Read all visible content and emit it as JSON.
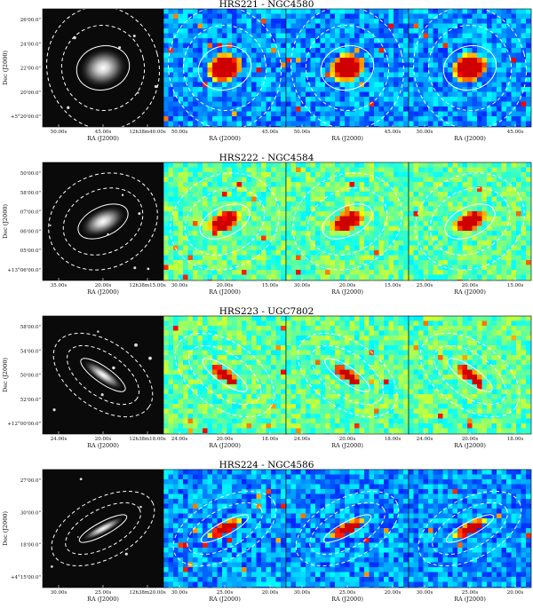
{
  "rows": [
    {
      "title": "HRS221 - NGC4580",
      "ylabel": "Dec (J2000)",
      "xlabel": "RA (J2000)",
      "yticks": [
        "26'00.0\"",
        "24'00.0\"",
        "22'00.0\"",
        "20'00.0\"",
        "+5°20'00.0\""
      ],
      "xticks": [
        [
          "50.00s",
          "45.00s",
          "12h38m40.00s"
        ],
        [
          "50.00s",
          "45.00s"
        ],
        [
          "50.00s",
          "45.00s"
        ],
        [
          "50.00s",
          "45.00s"
        ]
      ],
      "galaxy": {
        "ratio": 0.82,
        "angle": -15
      },
      "map_palette": "blue"
    },
    {
      "title": "HRS222 - NGC4584",
      "ylabel": "Dec (J2000)",
      "xlabel": "RA (J2000)",
      "yticks": [
        "50'00.0\"",
        "58'00.0\"",
        "07'00.0\"",
        "06'00.0\"",
        "05'00.0\"",
        "+13°06'00.0\""
      ],
      "xticks": [
        [
          "35.00s",
          "20.00s",
          "12h38m15.00s"
        ],
        [
          "30.00s",
          "20.00s",
          "15.00s"
        ],
        [
          "30.00s",
          "20.00s",
          "15.00s"
        ],
        [
          "25.00s",
          "20.00s",
          "15.00s"
        ]
      ],
      "galaxy": {
        "ratio": 0.55,
        "angle": -25
      },
      "map_palette": "green"
    },
    {
      "title": "HRS223 - UGC7802",
      "ylabel": "Dec (J2000)",
      "xlabel": "RA (J2000)",
      "yticks": [
        "58'00.0\"",
        "54'00.0\"",
        "50'00.0\"",
        "52'00.0\"",
        "+12°00'00.0\""
      ],
      "xticks": [
        [
          "24.00s",
          "20.00s",
          "12h38m18.00s"
        ],
        [
          "24.00s",
          "20.00s",
          "18.00s"
        ],
        [
          "24.00s",
          "20.00s",
          "18.00s"
        ],
        [
          "24.00s",
          "20.00s",
          "18.00s"
        ]
      ],
      "galaxy": {
        "ratio": 0.3,
        "angle": 35
      },
      "map_palette": "green"
    },
    {
      "title": "HRS224 - NGC4586",
      "ylabel": "Dec (J2000)",
      "xlabel": "RA (J2000)",
      "yticks": [
        "27'00.0\"",
        "30'00.0\"",
        "18'00.0\"",
        "+4°15'00.0\""
      ],
      "xticks": [
        [
          "30.00s",
          "25.00s",
          "12h38m20.00s"
        ],
        [
          "30.00s",
          "25.00s",
          "20.00s"
        ],
        [
          "30.00s",
          "25.00s",
          "20.00s"
        ],
        [
          "30.00s",
          "25.00s",
          "20.00s"
        ]
      ],
      "galaxy": {
        "ratio": 0.22,
        "angle": -28
      },
      "map_palette": "blue"
    }
  ]
}
